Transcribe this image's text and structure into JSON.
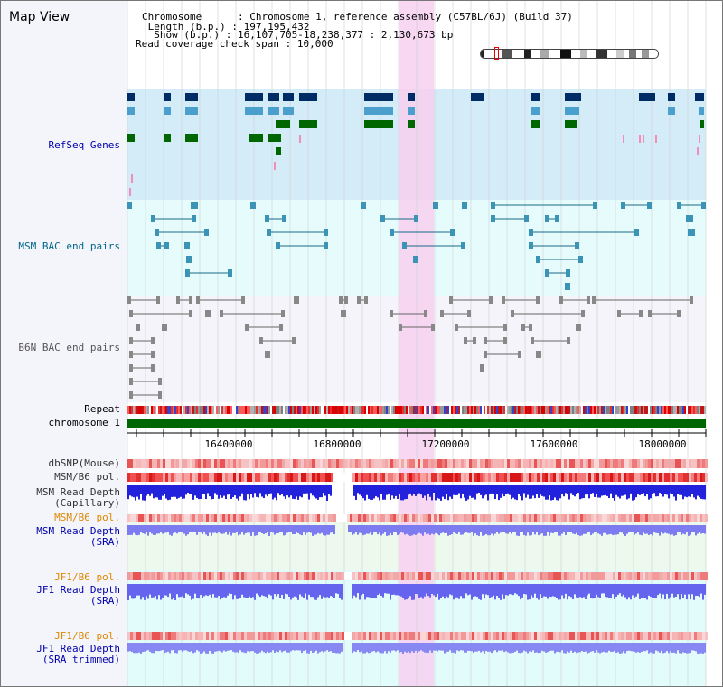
{
  "title": "Map View",
  "info": {
    "chromosome_label": "Chromosome",
    "chromosome_value": "Chromosome 1, reference assembly (C57BL/6J) (Build 37)",
    "length_label": "Length (b.p.)",
    "length_value": "197,195,432",
    "show_label": "Show (b.p.)",
    "show_value": "16,107,705-18,238,377 : 2,130,673 bp",
    "coverage_label": "Read coverage check span",
    "coverage_value": "10,000"
  },
  "tracks": {
    "refseq": "RefSeq Genes",
    "msm_bac": "MSM BAC end pairs",
    "b6n_bac": "B6N BAC end pairs",
    "repeat": "Repeat",
    "chromosome": "chromosome 1",
    "dbsnp": "dbSNP(Mouse)",
    "msm_pol1": "MSM/B6 pol.",
    "msm_depth_cap_1": "MSM Read Depth",
    "msm_depth_cap_2": "(Capillary)",
    "msm_pol2": "MSM/B6 pol.",
    "msm_depth_sra_1": "MSM Read Depth",
    "msm_depth_sra_2": "(SRA)",
    "jf1_pol1": "JF1/B6 pol.",
    "jf1_depth_1": "JF1 Read Depth",
    "jf1_depth_2": "(SRA)",
    "jf1_pol2": "JF1/B6 pol.",
    "jf1_trim_1": "JF1 Read Depth",
    "jf1_trim_2": "(SRA trimmed)"
  },
  "axis": {
    "ticks": [
      "16400000",
      "16800000",
      "17200000",
      "17600000",
      "18000000"
    ]
  },
  "colors": {
    "refseq_label": "#0000aa",
    "msm_label": "#006688",
    "b6n_label": "#555555",
    "pol_orange": "#dd8800",
    "sra_blue": "#0000aa",
    "highlight": "#f7d0f0",
    "chromosome_bar": "#006600"
  }
}
